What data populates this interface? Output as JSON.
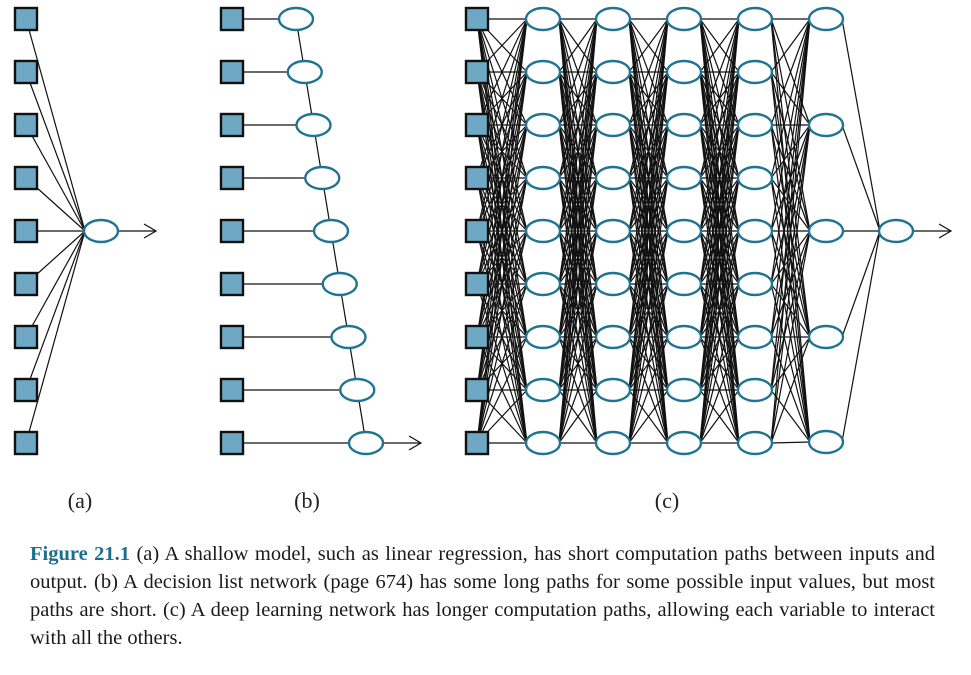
{
  "panels": [
    {
      "id": "a",
      "label": "(a)"
    },
    {
      "id": "b",
      "label": "(b)"
    },
    {
      "id": "c",
      "label": "(c)"
    }
  ],
  "network_layers": {
    "inputs": 9,
    "deep_hidden_layer_sizes": [
      9,
      9,
      9,
      9,
      5
    ],
    "outputs": 1
  },
  "colors": {
    "input_fill": "#6fa8c4",
    "input_border": "#111111",
    "node_stroke": "#1f7493",
    "line": "#111111",
    "figure_label": "#1b6f8a"
  },
  "caption": {
    "figure_label": "Figure 21.1",
    "text": "(a) A shallow model, such as linear regression, has short computation paths between inputs and output. (b) A decision list network (page 674) has some long paths for some possible input values, but most paths are short. (c) A deep learning network has longer computation paths, allowing each variable to interact with all the others."
  }
}
